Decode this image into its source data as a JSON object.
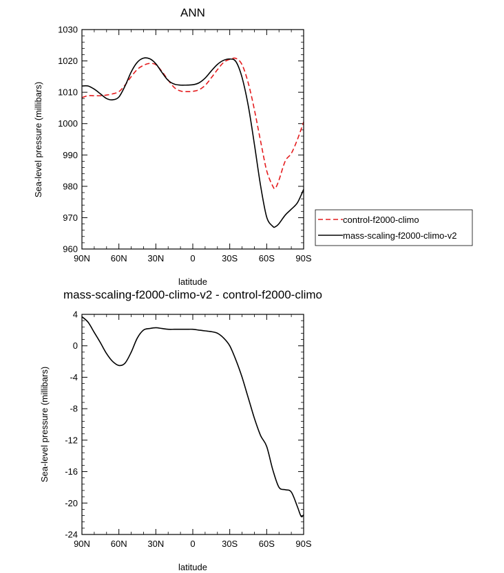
{
  "chart_data": [
    {
      "type": "line",
      "title": "ANN",
      "xlabel": "latitude",
      "ylabel": "Sea-level pressure (millibars)",
      "xlim": [
        90,
        -90
      ],
      "ylim": [
        960,
        1030
      ],
      "x_ticks": [
        90,
        60,
        30,
        0,
        -30,
        -60,
        -90
      ],
      "x_tick_labels": [
        "90N",
        "60N",
        "30N",
        "0",
        "30S",
        "60S",
        "90S"
      ],
      "y_ticks": [
        960,
        970,
        980,
        990,
        1000,
        1010,
        1020,
        1030
      ],
      "y_tick_labels": [
        "960",
        "970",
        "980",
        "990",
        "1000",
        "1010",
        "1020",
        "1030"
      ],
      "grid": false,
      "legend_position": "outside-right",
      "x": [
        90,
        85,
        80,
        75,
        70,
        65,
        60,
        55,
        50,
        45,
        40,
        35,
        30,
        25,
        20,
        15,
        10,
        5,
        0,
        -5,
        -10,
        -15,
        -20,
        -25,
        -30,
        -35,
        -40,
        -45,
        -50,
        -55,
        -60,
        -65,
        -67,
        -70,
        -75,
        -80,
        -85,
        -90
      ],
      "series": [
        {
          "name": "control-f2000-climo",
          "color": "#e41a1c",
          "dash": "dashed",
          "values": [
            1008.3,
            1008.9,
            1008.9,
            1008.9,
            1009.1,
            1009.5,
            1010.2,
            1012.3,
            1015.0,
            1017.3,
            1018.6,
            1019.2,
            1018.8,
            1016.6,
            1013.9,
            1011.5,
            1010.4,
            1010.2,
            1010.3,
            1010.8,
            1012.2,
            1014.6,
            1017.2,
            1019.5,
            1020.5,
            1020.8,
            1018.8,
            1013.0,
            1004.5,
            994.5,
            985.0,
            980.0,
            979.4,
            982.0,
            988.0,
            990.5,
            995.0,
            1000.5
          ]
        },
        {
          "name": "mass-scaling-f2000-climo-v2",
          "color": "#000000",
          "dash": "solid",
          "values": [
            1012.0,
            1012.0,
            1011.0,
            1009.5,
            1008.0,
            1007.6,
            1008.5,
            1012.0,
            1016.5,
            1019.6,
            1020.9,
            1020.7,
            1019.1,
            1016.3,
            1013.8,
            1012.6,
            1012.3,
            1012.3,
            1012.4,
            1013.0,
            1014.5,
            1016.8,
            1018.9,
            1020.2,
            1020.6,
            1019.8,
            1014.7,
            1005.8,
            993.5,
            980.3,
            970.2,
            967.2,
            967.1,
            968.1,
            970.8,
            972.7,
            974.8,
            979.0
          ]
        }
      ]
    },
    {
      "type": "line",
      "title": "mass-scaling-f2000-climo-v2 - control-f2000-climo",
      "xlabel": "latitude",
      "ylabel": "Sea-level pressure (millibars)",
      "xlim": [
        90,
        -90
      ],
      "ylim": [
        -24,
        4
      ],
      "x_ticks": [
        90,
        60,
        30,
        0,
        -30,
        -60,
        -90
      ],
      "x_tick_labels": [
        "90N",
        "60N",
        "30N",
        "0",
        "30S",
        "60S",
        "90S"
      ],
      "y_ticks": [
        -24,
        -20,
        -16,
        -12,
        -8,
        -4,
        0,
        4
      ],
      "y_tick_labels": [
        "-24",
        "-20",
        "-16",
        "-12",
        "-8",
        "-4",
        "0",
        "4"
      ],
      "grid": false,
      "x": [
        90,
        85,
        80,
        75,
        70,
        65,
        60,
        55,
        50,
        45,
        40,
        35,
        30,
        25,
        20,
        15,
        10,
        5,
        0,
        -5,
        -10,
        -15,
        -20,
        -25,
        -30,
        -35,
        -40,
        -45,
        -50,
        -55,
        -60,
        -65,
        -70,
        -75,
        -80,
        -85,
        -88,
        -90
      ],
      "series": [
        {
          "color": "#000000",
          "dash": "solid",
          "values": [
            3.7,
            3.0,
            1.7,
            0.4,
            -1.0,
            -2.0,
            -2.5,
            -2.2,
            -0.8,
            1.0,
            2.0,
            2.2,
            2.3,
            2.2,
            2.1,
            2.1,
            2.1,
            2.1,
            2.1,
            2.0,
            1.9,
            1.8,
            1.6,
            1.0,
            0.0,
            -1.8,
            -4.0,
            -6.6,
            -9.2,
            -11.4,
            -12.8,
            -15.8,
            -18.0,
            -18.3,
            -18.6,
            -20.5,
            -21.7,
            -21.5
          ]
        }
      ]
    }
  ],
  "legend": {
    "items": [
      {
        "label": "control-f2000-climo"
      },
      {
        "label": "mass-scaling-f2000-climo-v2"
      }
    ]
  }
}
